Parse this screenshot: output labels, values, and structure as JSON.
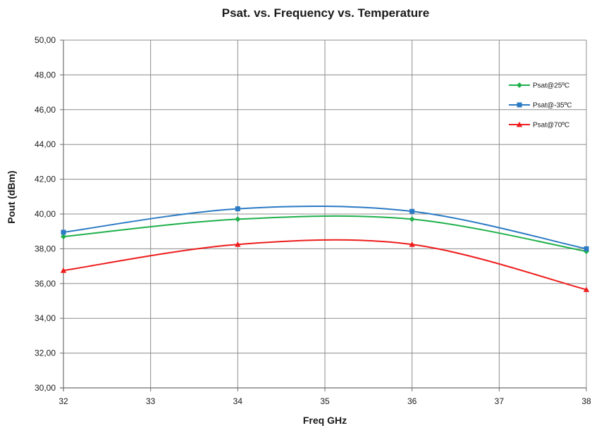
{
  "chart_data": {
    "type": "line",
    "title": "Psat. vs. Frequency vs. Temperature",
    "xlabel": "Freq GHz",
    "ylabel": "Pout (dBm)",
    "xlim": [
      32,
      38
    ],
    "ylim": [
      30,
      50
    ],
    "x_ticks": [
      32,
      33,
      34,
      35,
      36,
      37,
      38
    ],
    "x_tick_labels": [
      "32",
      "33",
      "34",
      "35",
      "36",
      "37",
      "38"
    ],
    "y_ticks": [
      30,
      32,
      34,
      36,
      38,
      40,
      42,
      44,
      46,
      48,
      50
    ],
    "y_tick_labels": [
      "30,00",
      "32,00",
      "34,00",
      "36,00",
      "38,00",
      "40,00",
      "42,00",
      "44,00",
      "46,00",
      "48,00",
      "50,00"
    ],
    "grid": true,
    "smooth": true,
    "legend_position": "top-right",
    "x": [
      32,
      34,
      36,
      38
    ],
    "series": [
      {
        "name": "Psat@25ºC",
        "values": [
          38.7,
          39.7,
          39.7,
          37.85
        ],
        "color": "#1eb04a",
        "marker": "diamond"
      },
      {
        "name": "Psat@-35ºC",
        "values": [
          38.95,
          40.3,
          40.15,
          38.0
        ],
        "color": "#2a7ac4",
        "marker": "square"
      },
      {
        "name": "Psat@70ºC",
        "values": [
          36.75,
          38.25,
          38.25,
          35.65
        ],
        "color": "#ee1c1c",
        "marker": "triangle"
      }
    ]
  }
}
